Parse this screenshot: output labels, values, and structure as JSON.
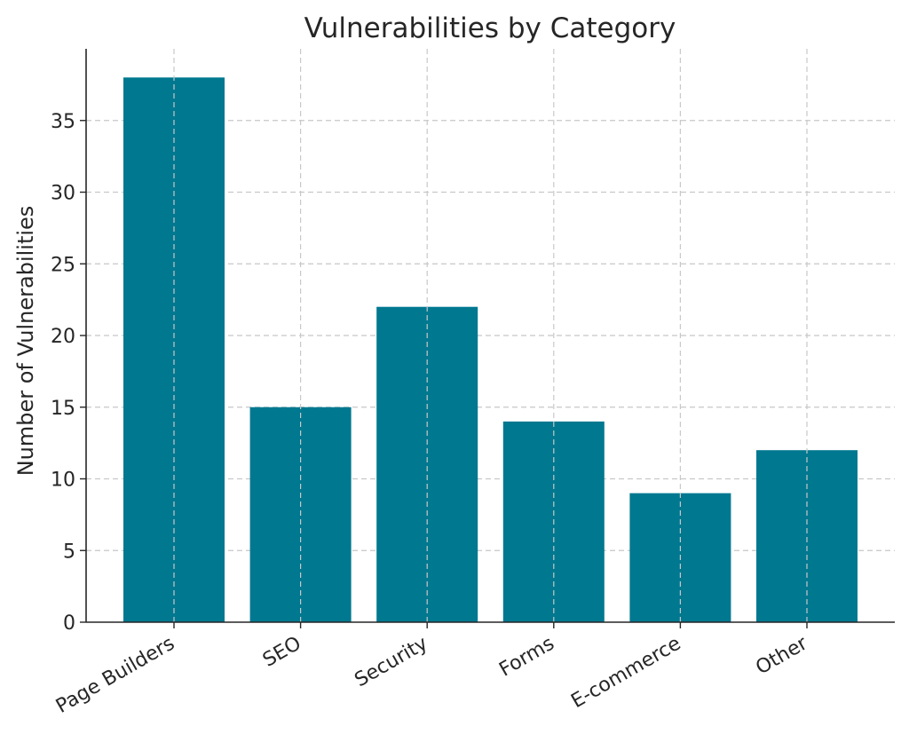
{
  "chart_data": {
    "type": "bar",
    "title": "Vulnerabilities by Category",
    "xlabel": "",
    "ylabel": "Number of Vulnerabilities",
    "categories": [
      "Page Builders",
      "SEO",
      "Security",
      "Forms",
      "E-commerce",
      "Other"
    ],
    "values": [
      38,
      15,
      22,
      14,
      9,
      12
    ],
    "ylim": [
      0,
      40
    ],
    "yticks": [
      "0",
      "5",
      "10",
      "15",
      "20",
      "25",
      "30",
      "35"
    ],
    "grid": true,
    "bar_color": "#007890"
  }
}
